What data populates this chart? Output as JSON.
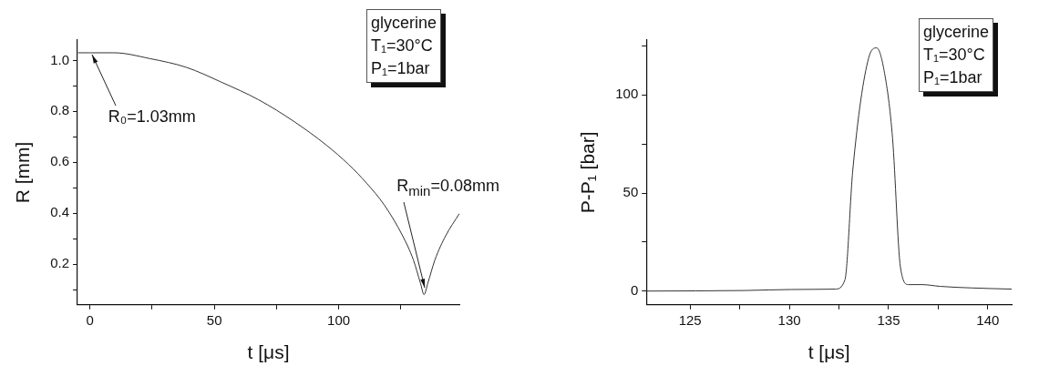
{
  "chart_data": [
    {
      "type": "line",
      "xlabel": "t [μs]",
      "ylabel": "R [mm]",
      "legend": false,
      "grid": false,
      "marker": "none",
      "line_style": "solid",
      "xlim": [
        -5,
        148.5
      ],
      "ylim": [
        0.04,
        1.08
      ],
      "xticks": [
        0,
        {
          "value": 25,
          "label": null
        },
        50,
        {
          "value": 75,
          "label": null
        },
        100,
        {
          "value": 125,
          "label": null
        }
      ],
      "yticks": [
        {
          "value": 0.1,
          "label": null
        },
        {
          "value": 0.2,
          "label": "0.2"
        },
        {
          "value": 0.3,
          "label": null
        },
        {
          "value": 0.4,
          "label": "0.4"
        },
        {
          "value": 0.5,
          "label": null
        },
        {
          "value": 0.6,
          "label": "0.6"
        },
        {
          "value": 0.7,
          "label": null
        },
        {
          "value": 0.8,
          "label": "0.8"
        },
        {
          "value": 0.9,
          "label": null
        },
        {
          "value": 1.0,
          "label": "1.0"
        }
      ],
      "series": [
        {
          "color": "#333333",
          "x": [
            -4.8,
            0,
            9.7,
            24.2,
            38.7,
            53.2,
            67.7,
            82.2,
            95.2,
            103.9,
            111.2,
            118.4,
            125.7,
            130,
            132.9,
            134.3,
            135.8,
            138.7,
            143,
            148.5
          ],
          "values": [
            1.03,
            1.03,
            1.03,
            1.007,
            0.973,
            0.913,
            0.846,
            0.759,
            0.666,
            0.592,
            0.518,
            0.431,
            0.311,
            0.217,
            0.124,
            0.08,
            0.124,
            0.217,
            0.311,
            0.398
          ]
        }
      ],
      "annotations": [
        "glycerine",
        "T₁=30°C",
        "P₁=1bar",
        {
          "text": "R₀=1.03mm",
          "x": 0,
          "y": 1.03
        },
        {
          "text": "R$_{min}$=0.08mm",
          "x": 134.3,
          "y": 0.08
        }
      ]
    },
    {
      "type": "line",
      "xlabel": "t [μs]",
      "ylabel": "P-P₁ [bar]",
      "legend": false,
      "grid": false,
      "marker": "none",
      "line_style": "solid",
      "xlim": [
        122.8,
        141.2
      ],
      "ylim": [
        -7,
        128
      ],
      "xticks": [
        125,
        {
          "value": 127.5,
          "label": null
        },
        130,
        {
          "value": 132.5,
          "label": null
        },
        135,
        {
          "value": 137.5,
          "label": null
        },
        140
      ],
      "yticks": [
        0,
        {
          "value": 25,
          "label": null
        },
        50,
        {
          "value": 75,
          "label": null
        },
        100,
        {
          "value": 125,
          "label": null
        }
      ],
      "series": [
        {
          "color": "#333333",
          "x": [
            122.8,
            127.8,
            130.1,
            132.3,
            132.8,
            133.2,
            134.0,
            134.4,
            134.8,
            135.2,
            135.6,
            136.0,
            136.7,
            137.6,
            139.2,
            141.2
          ],
          "values": [
            0,
            0.3,
            0.8,
            1,
            5.7,
            62,
            119,
            124,
            111,
            78,
            12,
            3.3,
            3.3,
            2.4,
            1.6,
            1.0
          ]
        }
      ],
      "annotations": [
        "glycerine",
        "T₁=30°C",
        "P₁=1bar"
      ]
    }
  ]
}
